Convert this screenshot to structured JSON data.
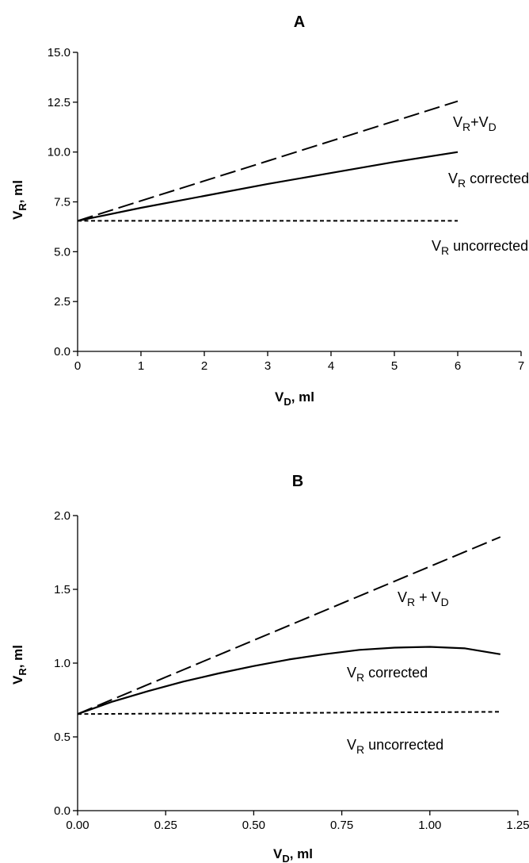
{
  "chart_data": [
    {
      "type": "line",
      "title": "A",
      "xlabel": {
        "main": "V",
        "sub": "D",
        "rest": ", ml"
      },
      "ylabel": {
        "main": "V",
        "sub": "R",
        "rest": ", ml"
      },
      "xlim": [
        0,
        7
      ],
      "ylim": [
        0,
        15
      ],
      "xticks": [
        "0",
        "1",
        "2",
        "3",
        "4",
        "5",
        "6",
        "7"
      ],
      "yticks": [
        "0.0",
        "2.5",
        "5.0",
        "7.5",
        "10.0",
        "12.5",
        "15.0"
      ],
      "grid": false,
      "series": [
        {
          "name": "VR+VD",
          "label": [
            {
              "t": "V"
            },
            {
              "t": "R",
              "sub": true
            },
            {
              "t": "+V"
            },
            {
              "t": "D",
              "sub": true
            }
          ],
          "style": "long-dash",
          "x": [
            0,
            1,
            2,
            3,
            4,
            5,
            6
          ],
          "y": [
            6.55,
            7.55,
            8.55,
            9.55,
            10.55,
            11.55,
            12.55
          ]
        },
        {
          "name": "VR corrected",
          "label": [
            {
              "t": "V"
            },
            {
              "t": "R",
              "sub": true
            },
            {
              "t": " corrected"
            }
          ],
          "style": "solid",
          "x": [
            0,
            1,
            2,
            3,
            4,
            5,
            6
          ],
          "y": [
            6.55,
            7.2,
            7.8,
            8.4,
            8.95,
            9.5,
            10.0
          ]
        },
        {
          "name": "VR uncorrected",
          "label": [
            {
              "t": "V"
            },
            {
              "t": "R",
              "sub": true
            },
            {
              "t": " uncorrected"
            }
          ],
          "style": "short-dash",
          "x": [
            0,
            6
          ],
          "y": [
            6.55,
            6.55
          ]
        }
      ]
    },
    {
      "type": "line",
      "title": "B",
      "xlabel": {
        "main": "V",
        "sub": "D",
        "rest": ", ml"
      },
      "ylabel": {
        "main": "V",
        "sub": "R",
        "rest": ", ml"
      },
      "xlim": [
        0,
        1.25
      ],
      "ylim": [
        0,
        2.0
      ],
      "xticks": [
        "0.00",
        "0.25",
        "0.50",
        "0.75",
        "1.00",
        "1.25"
      ],
      "yticks": [
        "0.0",
        "0.5",
        "1.0",
        "1.5",
        "2.0"
      ],
      "grid": false,
      "series": [
        {
          "name": "VR + VD",
          "label": [
            {
              "t": "V"
            },
            {
              "t": "R",
              "sub": true
            },
            {
              "t": " + V"
            },
            {
              "t": "D",
              "sub": true
            }
          ],
          "style": "long-dash",
          "x": [
            0,
            0.25,
            0.5,
            0.75,
            1.0,
            1.2
          ],
          "y": [
            0.655,
            0.905,
            1.155,
            1.405,
            1.655,
            1.855
          ]
        },
        {
          "name": "VR corrected",
          "label": [
            {
              "t": "V"
            },
            {
              "t": "R",
              "sub": true
            },
            {
              "t": " corrected"
            }
          ],
          "style": "solid",
          "x": [
            0,
            0.1,
            0.2,
            0.3,
            0.4,
            0.5,
            0.6,
            0.7,
            0.8,
            0.9,
            1.0,
            1.1,
            1.2
          ],
          "y": [
            0.655,
            0.74,
            0.81,
            0.875,
            0.93,
            0.98,
            1.025,
            1.06,
            1.09,
            1.105,
            1.11,
            1.1,
            1.06
          ]
        },
        {
          "name": "VR uncorrected",
          "label": [
            {
              "t": "V"
            },
            {
              "t": "R",
              "sub": true
            },
            {
              "t": " uncorrected"
            }
          ],
          "style": "short-dash",
          "x": [
            0,
            1.2
          ],
          "y": [
            0.655,
            0.67
          ]
        }
      ]
    }
  ]
}
